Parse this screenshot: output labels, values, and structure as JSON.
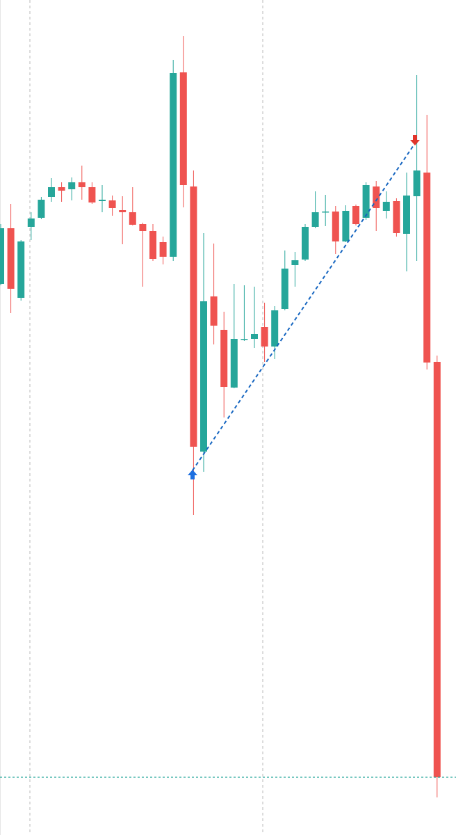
{
  "chart_data": {
    "type": "candlestick",
    "up_color": "#26a69a",
    "down_color": "#ef5350",
    "ylim": [
      0,
      1200
    ],
    "open": [
      792,
      872,
      772,
      874,
      887,
      917,
      931,
      928,
      938,
      931,
      911,
      912,
      898,
      895,
      878,
      868,
      852,
      831,
      1096,
      932,
      551,
      774,
      726,
      643,
      712,
      713,
      730,
      702,
      756,
      819,
      827,
      874,
      895,
      896,
      853,
      904,
      887,
      932,
      897,
      911,
      864,
      918,
      952,
      680
    ],
    "high": [
      878,
      907,
      855,
      895,
      917,
      944,
      938,
      945,
      962,
      938,
      934,
      919,
      918,
      931,
      880,
      878,
      860,
      1114,
      1148,
      955,
      865,
      850,
      752,
      792,
      790,
      788,
      765,
      760,
      840,
      838,
      878,
      925,
      920,
      904,
      905,
      906,
      938,
      940,
      925,
      915,
      952,
      1092,
      1035,
      689
    ],
    "low": [
      790,
      750,
      768,
      855,
      885,
      910,
      910,
      912,
      913,
      907,
      895,
      890,
      849,
      876,
      788,
      825,
      820,
      825,
      902,
      460,
      522,
      705,
      600,
      642,
      710,
      700,
      680,
      684,
      754,
      788,
      825,
      872,
      875,
      835,
      852,
      876,
      884,
      868,
      886,
      860,
      810,
      825,
      669,
      54
    ],
    "close": [
      872,
      785,
      853,
      886,
      913,
      931,
      926,
      938,
      931,
      909,
      913,
      901,
      895,
      877,
      868,
      828,
      831,
      1095,
      934,
      558,
      767,
      732,
      644,
      713,
      713,
      720,
      702,
      754,
      814,
      826,
      874,
      895,
      896,
      853,
      897,
      878,
      934,
      901,
      910,
      865,
      919,
      955,
      679,
      83
    ]
  }
}
